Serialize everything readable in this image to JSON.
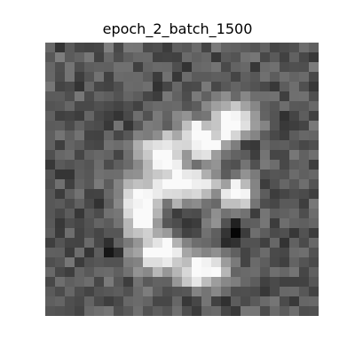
{
  "figure": {
    "title": "epoch_2_batch_1500"
  },
  "image": {
    "kind": "grayscale-generated-digit-sample",
    "grid": [
      28,
      28
    ],
    "colors": {
      "background": "#ffffff",
      "dark": "#1a1a1a",
      "mid": "#5a5a5a",
      "light": "#f2f2f2"
    }
  }
}
